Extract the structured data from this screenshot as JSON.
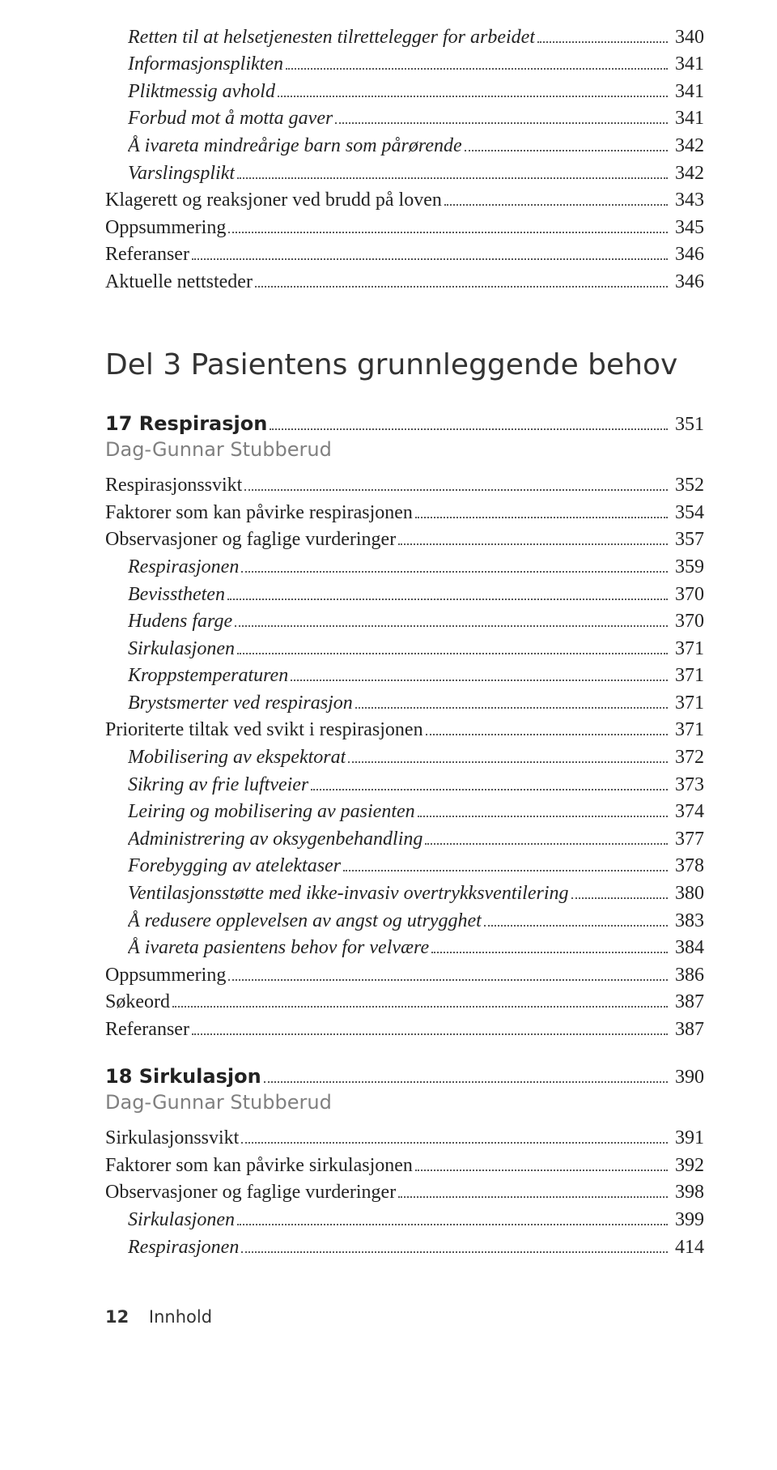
{
  "colors": {
    "text": "#222222",
    "author": "#808080",
    "leader": "#555555",
    "background": "#ffffff"
  },
  "typography": {
    "body_family": "Georgia / serif",
    "heading_family": "Helvetica / sans-serif",
    "body_size_pt": 18,
    "part_title_size_pt": 27,
    "footer_size_pt": 16
  },
  "top_entries": [
    {
      "label": "Retten til at helsetjenesten tilrettelegger for arbeidet",
      "page": "340",
      "italic": true,
      "indent": 1
    },
    {
      "label": "Informasjonsplikten",
      "page": "341",
      "italic": true,
      "indent": 1
    },
    {
      "label": "Pliktmessig avhold",
      "page": "341",
      "italic": true,
      "indent": 1
    },
    {
      "label": "Forbud mot å motta gaver",
      "page": "341",
      "italic": true,
      "indent": 1
    },
    {
      "label": "Å ivareta mindreårige barn som pårørende",
      "page": "342",
      "italic": true,
      "indent": 1
    },
    {
      "label": "Varslingsplikt",
      "page": "342",
      "italic": true,
      "indent": 1
    },
    {
      "label": "Klagerett og reaksjoner ved brudd på loven",
      "page": "343",
      "italic": false,
      "indent": 0
    },
    {
      "label": "Oppsummering",
      "page": "345",
      "italic": false,
      "indent": 0
    },
    {
      "label": "Referanser",
      "page": "346",
      "italic": false,
      "indent": 0
    },
    {
      "label": "Aktuelle nettsteder",
      "page": "346",
      "italic": false,
      "indent": 0
    }
  ],
  "part_title": "Del 3  Pasientens grunnleggende behov",
  "chapter17": {
    "label": "17 Respirasjon",
    "page": "351",
    "author": "Dag-Gunnar Stubberud",
    "entries": [
      {
        "label": "Respirasjonssvikt",
        "page": "352",
        "italic": false,
        "indent": 0
      },
      {
        "label": "Faktorer som kan påvirke respirasjonen",
        "page": "354",
        "italic": false,
        "indent": 0
      },
      {
        "label": "Observasjoner og faglige vurderinger",
        "page": "357",
        "italic": false,
        "indent": 0
      },
      {
        "label": "Respirasjonen",
        "page": "359",
        "italic": true,
        "indent": 1
      },
      {
        "label": "Bevisstheten",
        "page": "370",
        "italic": true,
        "indent": 1
      },
      {
        "label": "Hudens farge",
        "page": "370",
        "italic": true,
        "indent": 1
      },
      {
        "label": "Sirkulasjonen",
        "page": "371",
        "italic": true,
        "indent": 1
      },
      {
        "label": "Kroppstemperaturen",
        "page": "371",
        "italic": true,
        "indent": 1
      },
      {
        "label": "Brystsmerter ved respirasjon",
        "page": "371",
        "italic": true,
        "indent": 1
      },
      {
        "label": "Prioriterte tiltak ved svikt i respirasjonen",
        "page": "371",
        "italic": false,
        "indent": 0
      },
      {
        "label": "Mobilisering av ekspektorat",
        "page": "372",
        "italic": true,
        "indent": 1
      },
      {
        "label": "Sikring av frie luftveier",
        "page": "373",
        "italic": true,
        "indent": 1
      },
      {
        "label": "Leiring og mobilisering av pasienten",
        "page": "374",
        "italic": true,
        "indent": 1
      },
      {
        "label": "Administrering av oksygenbehandling",
        "page": "377",
        "italic": true,
        "indent": 1
      },
      {
        "label": "Forebygging av atelektaser",
        "page": "378",
        "italic": true,
        "indent": 1
      },
      {
        "label": "Ventilasjonsstøtte med ikke-invasiv overtrykksventilering",
        "page": "380",
        "italic": true,
        "indent": 1
      },
      {
        "label": "Å redusere opplevelsen av angst og utrygghet",
        "page": "383",
        "italic": true,
        "indent": 1
      },
      {
        "label": "Å ivareta pasientens behov for velvære",
        "page": "384",
        "italic": true,
        "indent": 1
      },
      {
        "label": "Oppsummering",
        "page": "386",
        "italic": false,
        "indent": 0
      },
      {
        "label": "Søkeord",
        "page": "387",
        "italic": false,
        "indent": 0
      },
      {
        "label": "Referanser",
        "page": "387",
        "italic": false,
        "indent": 0
      }
    ]
  },
  "chapter18": {
    "label": "18 Sirkulasjon",
    "page": "390",
    "author": "Dag-Gunnar Stubberud",
    "entries": [
      {
        "label": "Sirkulasjonssvikt",
        "page": "391",
        "italic": false,
        "indent": 0
      },
      {
        "label": "Faktorer som kan påvirke sirkulasjonen",
        "page": "392",
        "italic": false,
        "indent": 0
      },
      {
        "label": "Observasjoner og faglige vurderinger",
        "page": "398",
        "italic": false,
        "indent": 0
      },
      {
        "label": "Sirkulasjonen",
        "page": "399",
        "italic": true,
        "indent": 1
      },
      {
        "label": "Respirasjonen",
        "page": "414",
        "italic": true,
        "indent": 1
      }
    ]
  },
  "footer": {
    "page_number": "12",
    "section": "Innhold"
  }
}
